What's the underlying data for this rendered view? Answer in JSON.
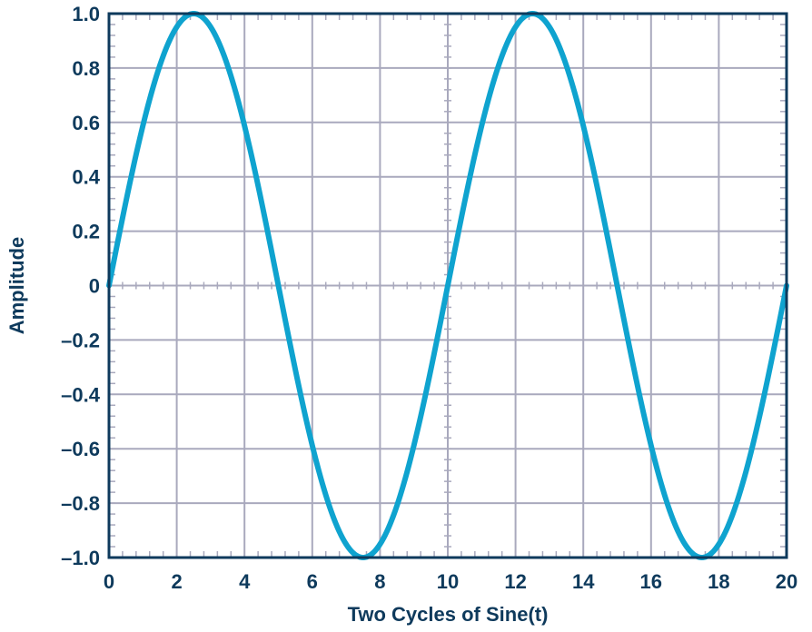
{
  "chart_data": {
    "type": "line",
    "xlabel": "Two Cycles of Sine(t)",
    "ylabel": "Amplitude",
    "xlim": [
      0,
      20
    ],
    "ylim": [
      -1.0,
      1.0
    ],
    "x_ticks": [
      0,
      2,
      4,
      6,
      8,
      10,
      12,
      14,
      16,
      18,
      20
    ],
    "x_tick_labels": [
      "0",
      "2",
      "4",
      "6",
      "8",
      "10",
      "12",
      "14",
      "16",
      "18",
      "20"
    ],
    "y_ticks": [
      1.0,
      0.8,
      0.6,
      0.4,
      0.2,
      0,
      -0.2,
      -0.4,
      -0.6,
      -0.8,
      -1.0
    ],
    "y_tick_labels": [
      "1.0",
      "0.8",
      "0.6",
      "0.4",
      "0.2",
      "0",
      "–0.2",
      "–0.4",
      "–0.6",
      "–0.8",
      "–1.0"
    ],
    "grid": true,
    "series": [
      {
        "function": "sin(2*pi*t/10)",
        "x": [
          0,
          0.5,
          1,
          1.5,
          2,
          2.5,
          3,
          3.5,
          4,
          4.5,
          5,
          5.5,
          6,
          6.5,
          7,
          7.5,
          8,
          8.5,
          9,
          9.5,
          10,
          10.5,
          11,
          11.5,
          12,
          12.5,
          13,
          13.5,
          14,
          14.5,
          15,
          15.5,
          16,
          16.5,
          17,
          17.5,
          18,
          18.5,
          19,
          19.5,
          20
        ],
        "y": [
          0,
          0.309,
          0.588,
          0.809,
          0.951,
          1.0,
          0.951,
          0.809,
          0.588,
          0.309,
          0,
          -0.309,
          -0.588,
          -0.809,
          -0.951,
          -1.0,
          -0.951,
          -0.809,
          -0.588,
          -0.309,
          0,
          0.309,
          0.588,
          0.809,
          0.951,
          1.0,
          0.951,
          0.809,
          0.588,
          0.309,
          0,
          -0.309,
          -0.588,
          -0.809,
          -0.951,
          -1.0,
          -0.951,
          -0.809,
          -0.588,
          -0.309,
          0
        ]
      }
    ],
    "colors": {
      "line": "#0fa3cf",
      "grid": "#a9a9bd",
      "axis": "#0e3a5c",
      "text": "#0e3a5c"
    }
  }
}
